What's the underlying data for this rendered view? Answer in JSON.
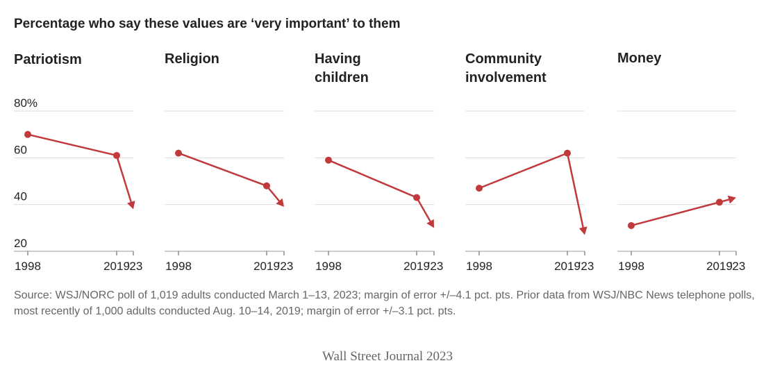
{
  "headline": "Percentage who say these values are ‘very important’ to them",
  "source": "Source: WSJ/NORC poll of 1,019 adults conducted March 1–13, 2023; margin of error +/–4.1 pct. pts. Prior data from WSJ/NBC News telephone polls, most recently of 1,000 adults conducted Aug. 10–14, 2019; margin of error +/–3.1 pct. pts.",
  "credit": "Wall Street Journal 2023",
  "colors": {
    "line": "#c0393b",
    "grid": "#dddddd",
    "axis": "#999999",
    "text": "#222222"
  },
  "chart_data": [
    {
      "type": "line",
      "title": "Patriotism",
      "x": [
        "1998",
        "2019",
        "2023"
      ],
      "x_tick_labels": [
        "1998",
        "2019",
        "’23"
      ],
      "values": [
        70,
        61,
        38
      ],
      "ylim": [
        20,
        80
      ],
      "y_ticks": [
        "80%",
        "60",
        "40",
        "20"
      ],
      "grid": true
    },
    {
      "type": "line",
      "title": "Religion",
      "x": [
        "1998",
        "2019",
        "2023"
      ],
      "x_tick_labels": [
        "1998",
        "2019",
        "’23"
      ],
      "values": [
        62,
        48,
        39
      ],
      "ylim": [
        20,
        80
      ],
      "grid": true
    },
    {
      "type": "line",
      "title": "Having\nchildren",
      "x": [
        "1998",
        "2019",
        "2023"
      ],
      "x_tick_labels": [
        "1998",
        "2019",
        "’23"
      ],
      "values": [
        59,
        43,
        30
      ],
      "ylim": [
        20,
        80
      ],
      "grid": true
    },
    {
      "type": "line",
      "title": "Community\ninvolvement",
      "x": [
        "1998",
        "2019",
        "2023"
      ],
      "x_tick_labels": [
        "1998",
        "2019",
        "’23"
      ],
      "values": [
        47,
        62,
        27
      ],
      "ylim": [
        20,
        80
      ],
      "grid": true
    },
    {
      "type": "line",
      "title": "Money",
      "x": [
        "1998",
        "2019",
        "2023"
      ],
      "x_tick_labels": [
        "1998",
        "2019",
        "’23"
      ],
      "values": [
        31,
        41,
        43
      ],
      "ylim": [
        20,
        80
      ],
      "grid": true
    }
  ]
}
